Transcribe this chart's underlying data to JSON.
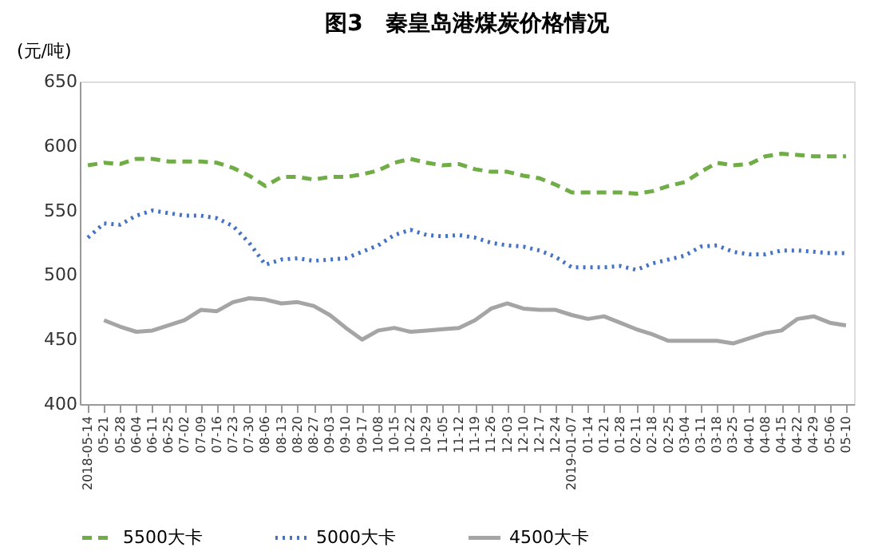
{
  "chart_data": {
    "type": "line",
    "title": "图3　秦皇岛港煤炭价格情况",
    "ylabel": "(元/吨)",
    "categories": [
      "2018-05-14",
      "05-21",
      "05-28",
      "06-04",
      "06-11",
      "06-25",
      "07-02",
      "07-09",
      "07-16",
      "07-23",
      "07-30",
      "08-06",
      "08-13",
      "08-20",
      "08-27",
      "09-03",
      "09-10",
      "09-17",
      "10-08",
      "10-15",
      "10-22",
      "10-29",
      "11-05",
      "11-12",
      "11-19",
      "11-26",
      "12-03",
      "12-10",
      "12-17",
      "12-24",
      "2019-01-07",
      "01-14",
      "01-21",
      "01-28",
      "02-11",
      "02-18",
      "02-25",
      "03-04",
      "03-11",
      "03-18",
      "03-25",
      "04-01",
      "04-08",
      "04-15",
      "04-22",
      "04-29",
      "05-06",
      "05-10"
    ],
    "series": [
      {
        "name": "5500大卡",
        "color": "#70ad47",
        "line_style": "dashed",
        "values": [
          585,
          587,
          586,
          590,
          590,
          588,
          588,
          588,
          587,
          583,
          577,
          569,
          576,
          576,
          574,
          576,
          576,
          578,
          581,
          587,
          590,
          587,
          585,
          586,
          582,
          580,
          580,
          577,
          575,
          570,
          564,
          564,
          564,
          564,
          563,
          565,
          569,
          572,
          580,
          587,
          585,
          586,
          592,
          594,
          593,
          592,
          592,
          592
        ]
      },
      {
        "name": "5000大卡",
        "color": "#4472c4",
        "line_style": "dotted",
        "values": [
          529,
          540,
          539,
          546,
          550,
          548,
          546,
          546,
          544,
          538,
          525,
          508,
          512,
          513,
          511,
          512,
          513,
          518,
          523,
          531,
          535,
          531,
          530,
          531,
          529,
          525,
          523,
          522,
          519,
          514,
          506,
          506,
          506,
          507,
          504,
          509,
          512,
          515,
          522,
          523,
          518,
          516,
          516,
          519,
          519,
          518,
          517,
          517
        ]
      },
      {
        "name": "4500大卡",
        "color": "#a5a5a5",
        "line_style": "solid",
        "values": [
          null,
          465,
          460,
          456,
          457,
          461,
          465,
          473,
          472,
          479,
          482,
          481,
          478,
          479,
          476,
          469,
          459,
          450,
          457,
          459,
          456,
          457,
          458,
          459,
          465,
          474,
          478,
          474,
          473,
          473,
          469,
          466,
          468,
          463,
          458,
          454,
          449,
          449,
          449,
          449,
          447,
          451,
          455,
          457,
          466,
          468,
          463,
          461
        ]
      }
    ],
    "ylim": [
      400,
      650
    ],
    "yticks": [
      400,
      450,
      500,
      550,
      600,
      650
    ],
    "grid": false,
    "legend": "bottom"
  }
}
